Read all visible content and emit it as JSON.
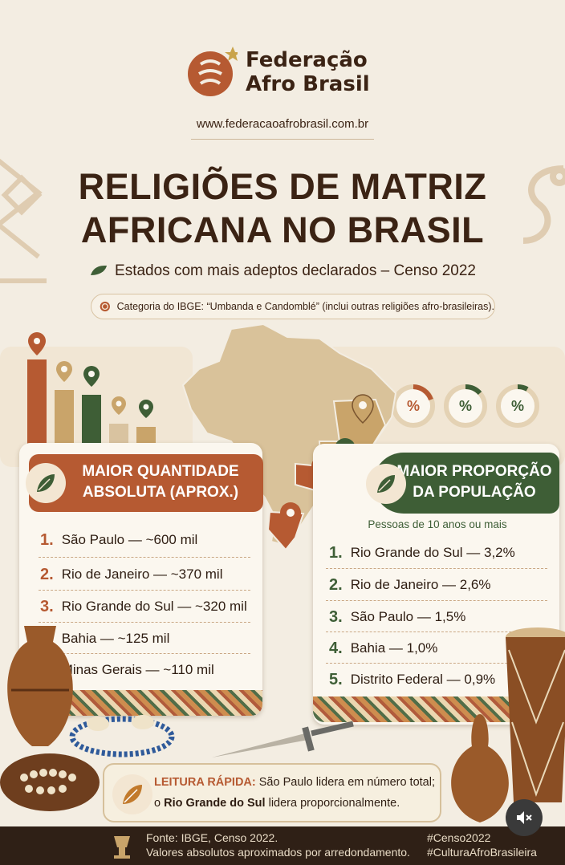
{
  "brand": {
    "name_line1": "Federação",
    "name_line2": "Afro Brasil",
    "url": "www.federacaoafrobrasil.com.br"
  },
  "title": {
    "line1": "RELIGIÕES DE MATRIZ",
    "line2": "AFRICANA NO BRASIL"
  },
  "subtitle": "Estados com mais adeptos declarados – Censo 2022",
  "ibge_note": "Categoria do IBGE: “Umbanda e Candomblé” (inclui outras religiões afro-brasileiras).",
  "percent_symbol": "%",
  "left": {
    "header": [
      "MAIOR QUANTIDADE",
      "ABSOLUTA (APROX.)"
    ],
    "items": [
      {
        "rank": "1.",
        "text": "São Paulo — ~600 mil"
      },
      {
        "rank": "2.",
        "text": "Rio de Janeiro — ~370 mil"
      },
      {
        "rank": "3.",
        "text": "Rio Grande do Sul — ~320 mil"
      },
      {
        "rank": "4.",
        "text": "Bahia — ~125 mil"
      },
      {
        "rank": "5.",
        "text": "Minas Gerais — ~110 mil"
      }
    ]
  },
  "right": {
    "header": [
      "MAIOR PROPORÇÃO",
      "DA POPULAÇÃO"
    ],
    "subheader": "Pessoas de 10 anos ou mais",
    "items": [
      {
        "rank": "1.",
        "text": "Rio Grande do Sul — 3,2%"
      },
      {
        "rank": "2.",
        "text": "Rio de Janeiro — 2,6%"
      },
      {
        "rank": "3.",
        "text": "São Paulo — 1,5%"
      },
      {
        "rank": "4.",
        "text": "Bahia — 1,0%"
      },
      {
        "rank": "5.",
        "text": "Distrito Federal — 0,9%"
      }
    ]
  },
  "reading": {
    "label": "LEITURA RÁPIDA:",
    "line1_rest": " São Paulo lidera em número total;",
    "line2_prefix": "o ",
    "line2_bold": "Rio Grande do Sul",
    "line2_rest": " lidera proporcionalmente."
  },
  "footer": {
    "source_label": "Fonte:",
    "source_text": " IBGE, Censo 2022.",
    "note": "Valores absolutos aproximados por arredondamento.",
    "tags": [
      "#Censo2022",
      "#CulturaAfroBrasileira"
    ]
  },
  "colors": {
    "terracotta": "#b65a32",
    "green": "#3e5e36",
    "ochre": "#c9a46a",
    "dark_brown": "#3b2314",
    "cream": "#f3ede2"
  },
  "icons": [
    "sankofa-logo-icon",
    "star-icon",
    "leaf-icon",
    "ibge-seal-icon",
    "map-pin-icon",
    "mute-icon",
    "lamp-icon"
  ]
}
